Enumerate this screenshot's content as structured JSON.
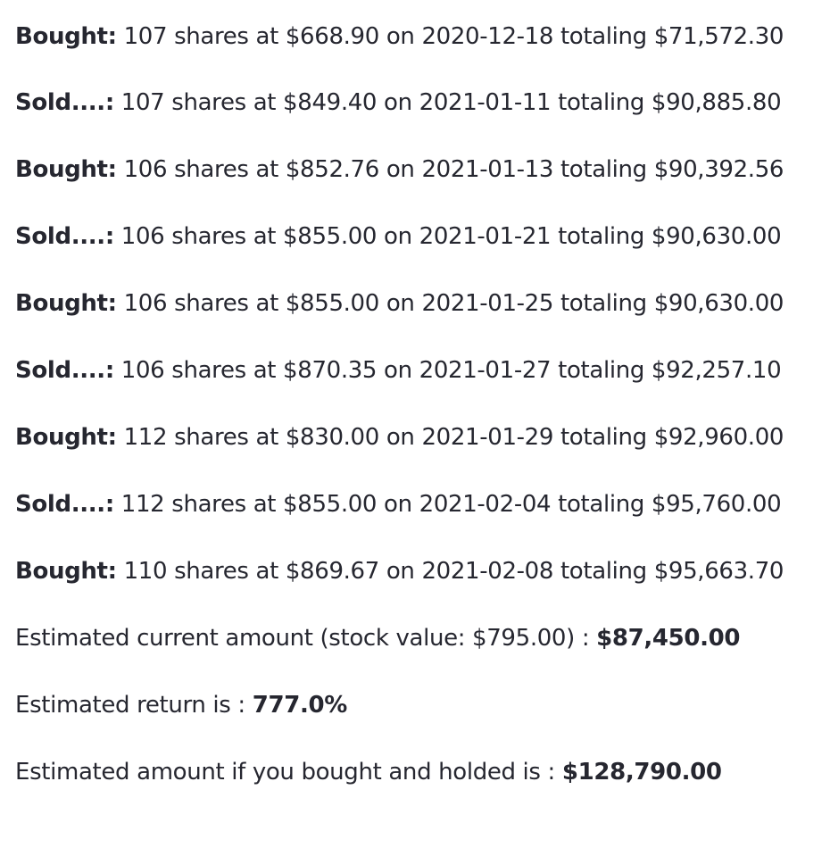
{
  "transactions": [
    {
      "label": "Bought:",
      "text": " 107 shares at $668.90 on 2020-12-18 totaling $71,572.30"
    },
    {
      "label": "Sold....:",
      "text": " 107 shares at $849.40 on 2021-01-11 totaling $90,885.80"
    },
    {
      "label": "Bought:",
      "text": " 106 shares at $852.76 on 2021-01-13 totaling $90,392.56"
    },
    {
      "label": "Sold....:",
      "text": " 106 shares at $855.00 on 2021-01-21 totaling $90,630.00"
    },
    {
      "label": "Bought:",
      "text": " 106 shares at $855.00 on 2021-01-25 totaling $90,630.00"
    },
    {
      "label": "Sold....:",
      "text": " 106 shares at $870.35 on 2021-01-27 totaling $92,257.10"
    },
    {
      "label": "Bought:",
      "text": " 112 shares at $830.00 on 2021-01-29 totaling $92,960.00"
    },
    {
      "label": "Sold....:",
      "text": " 112 shares at $855.00 on 2021-02-04 totaling $95,760.00"
    },
    {
      "label": "Bought:",
      "text": " 110 shares at $869.67 on 2021-02-08 totaling $95,663.70"
    }
  ],
  "summary": {
    "current_amount_text": "Estimated current amount (stock value: $795.00) : ",
    "current_amount_value": "$87,450.00",
    "return_text": "Estimated return is : ",
    "return_value": "777.0%",
    "hold_text": "Estimated amount if you bought and holded is : ",
    "hold_value": "$128,790.00"
  }
}
